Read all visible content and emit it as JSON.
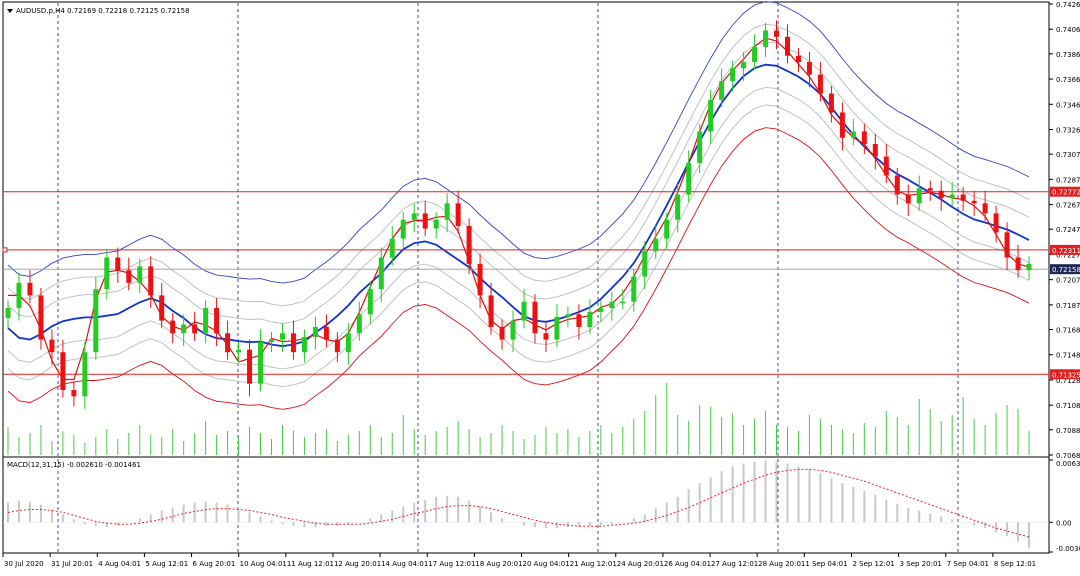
{
  "header": {
    "symbol_line": "AUDUSD.p,H4  0.72169 0.72218 0.72125 0.72158",
    "macd_line": "MACD(12,31,15) -0.002610 -0.001461"
  },
  "colors": {
    "bull": "#22cc22",
    "bear": "#ee1111",
    "grid_v": "#1a1aa0",
    "ma_main": "#1133cc",
    "ma_upper": "#3344cc",
    "envelope_gray": "#bbbbbb",
    "ma_red": "#dd1111",
    "hline": "#e02020",
    "volume": "#44cc44",
    "macd_hist": "#c8c8c8",
    "macd_signal": "#ee2222"
  },
  "price_axis": {
    "ticks": [
      "0.74260",
      "0.74060",
      "0.73865",
      "0.73665",
      "0.73465",
      "0.73265",
      "0.73070",
      "0.72870",
      "0.72670",
      "0.72475",
      "0.72275",
      "0.72075",
      "0.71875",
      "0.71680",
      "0.71480",
      "0.71280",
      "0.71080",
      "0.70885",
      "0.70685"
    ],
    "tags": [
      {
        "label": "0.72772",
        "value": 0.72772,
        "style": "red"
      },
      {
        "label": "0.72311",
        "value": 0.72311,
        "style": "red"
      },
      {
        "label": "0.72158",
        "value": 0.72158,
        "style": "dark"
      },
      {
        "label": "0.71325",
        "value": 0.71325,
        "style": "red"
      }
    ]
  },
  "macd_axis": {
    "ticks": [
      "0.006359",
      "0.00",
      "-0.003036"
    ]
  },
  "time_axis": {
    "labels": [
      "30 Jul 2020",
      "31 Jul 20:01",
      "4 Aug 04:01",
      "5 Aug 12:01",
      "6 Aug 20:01",
      "10 Aug 04:01",
      "11 Aug 12:01",
      "12 Aug 20:01",
      "14 Aug 04:01",
      "17 Aug 12:01",
      "18 Aug 20:01",
      "20 Aug 04:01",
      "21 Aug 12:01",
      "24 Aug 20:01",
      "26 Aug 04:01",
      "27 Aug 12:01",
      "28 Aug 20:01",
      "1 Sep 04:01",
      "2 Sep 12:01",
      "3 Sep 20:01",
      "7 Sep 04:01",
      "8 Sep 12:01"
    ]
  },
  "chart_data": {
    "type": "candlestick",
    "symbol": "AUDUSD.p",
    "timeframe": "H4",
    "ylim": [
      0.70685,
      0.7426
    ],
    "hlines": [
      0.72772,
      0.72311,
      0.71325
    ],
    "last_price": 0.72158,
    "close_path": [
      0.7185,
      0.7205,
      0.7195,
      0.716,
      0.715,
      0.712,
      0.7115,
      0.715,
      0.72,
      0.7225,
      0.7215,
      0.7205,
      0.7218,
      0.7195,
      0.7175,
      0.7165,
      0.7172,
      0.7165,
      0.7185,
      0.7165,
      0.715,
      0.7152,
      0.7125,
      0.7158,
      0.716,
      0.7165,
      0.715,
      0.7162,
      0.717,
      0.716,
      0.715,
      0.7165,
      0.718,
      0.72,
      0.7225,
      0.724,
      0.7255,
      0.726,
      0.7248,
      0.7255,
      0.7268,
      0.725,
      0.722,
      0.7195,
      0.717,
      0.716,
      0.7175,
      0.719,
      0.7165,
      0.716,
      0.7178,
      0.718,
      0.717,
      0.7182,
      0.7185,
      0.719,
      0.719,
      0.721,
      0.723,
      0.724,
      0.7255,
      0.7275,
      0.73,
      0.7325,
      0.735,
      0.7365,
      0.7375,
      0.738,
      0.7392,
      0.7405,
      0.74,
      0.7385,
      0.738,
      0.737,
      0.7355,
      0.734,
      0.732,
      0.7325,
      0.7315,
      0.7305,
      0.729,
      0.7275,
      0.7268,
      0.728,
      0.7278,
      0.7272,
      0.7275,
      0.727,
      0.7268,
      0.726,
      0.7245,
      0.7225,
      0.7215,
      0.722
    ],
    "volume_path": [
      28,
      18,
      22,
      30,
      14,
      24,
      20,
      12,
      18,
      26,
      16,
      22,
      30,
      20,
      18,
      26,
      14,
      22,
      34,
      20,
      24,
      18,
      28,
      22,
      16,
      30,
      24,
      18,
      22,
      26,
      14,
      20,
      24,
      30,
      18,
      22,
      40,
      26,
      20,
      24,
      28,
      34,
      26,
      18,
      22,
      30,
      24,
      16,
      20,
      28,
      22,
      26,
      18,
      24,
      30,
      22,
      28,
      36,
      44,
      60,
      72,
      40,
      34,
      50,
      48,
      38,
      42,
      30,
      36,
      44,
      30,
      28,
      24,
      40,
      36,
      30,
      26,
      22,
      32,
      28,
      44,
      38,
      30,
      56,
      46,
      34,
      40,
      58,
      36,
      30,
      42,
      50,
      46,
      24
    ],
    "macd_hist": [
      0.002,
      0.0022,
      0.0021,
      0.0018,
      0.0013,
      0.0008,
      0.0003,
      -0.0002,
      -0.0004,
      -0.0005,
      -0.0003,
      0.0,
      0.0004,
      0.0008,
      0.0012,
      0.0015,
      0.0018,
      0.002,
      0.0021,
      0.002,
      0.0018,
      0.0014,
      0.001,
      0.0006,
      0.0002,
      -0.0002,
      -0.0004,
      -0.0005,
      -0.0005,
      -0.0004,
      -0.0004,
      -0.0002,
      0.0,
      0.0004,
      0.0008,
      0.0012,
      0.0016,
      0.002,
      0.0023,
      0.0026,
      0.0027,
      0.0026,
      0.0022,
      0.0016,
      0.001,
      0.0004,
      0.0,
      -0.0003,
      -0.0005,
      -0.0006,
      -0.0006,
      -0.0005,
      -0.0005,
      -0.0004,
      -0.0003,
      -0.0002,
      0.0,
      0.0004,
      0.0008,
      0.0014,
      0.002,
      0.0026,
      0.0034,
      0.004,
      0.0046,
      0.0052,
      0.0057,
      0.006,
      0.0062,
      0.0063,
      0.0062,
      0.006,
      0.0057,
      0.0054,
      0.005,
      0.0045,
      0.004,
      0.0036,
      0.0032,
      0.0028,
      0.0023,
      0.0019,
      0.0015,
      0.0012,
      0.0009,
      0.0006,
      0.0003,
      0.0,
      -0.0003,
      -0.0006,
      -0.001,
      -0.0014,
      -0.002,
      -0.0026
    ],
    "macd_signal": [
      0.001,
      0.0012,
      0.0013,
      0.0013,
      0.0012,
      0.001,
      0.0007,
      0.0004,
      0.0001,
      -0.0001,
      -0.0002,
      -0.0002,
      -0.0001,
      0.0001,
      0.0003,
      0.0006,
      0.0009,
      0.0011,
      0.0013,
      0.0014,
      0.0014,
      0.0013,
      0.0012,
      0.001,
      0.0008,
      0.0005,
      0.0003,
      0.0001,
      -0.0001,
      -0.0002,
      -0.0002,
      -0.0002,
      -0.0002,
      -0.0001,
      0.0001,
      0.0003,
      0.0006,
      0.0009,
      0.0011,
      0.0014,
      0.0016,
      0.0017,
      0.0017,
      0.0016,
      0.0014,
      0.0011,
      0.0008,
      0.0005,
      0.0002,
      0.0,
      -0.0002,
      -0.0003,
      -0.0004,
      -0.0004,
      -0.0004,
      -0.0003,
      -0.0002,
      -0.0001,
      0.0001,
      0.0004,
      0.0007,
      0.0011,
      0.0015,
      0.002,
      0.0025,
      0.003,
      0.0035,
      0.004,
      0.0044,
      0.0048,
      0.0051,
      0.0053,
      0.0054,
      0.0054,
      0.0053,
      0.0051,
      0.0048,
      0.0045,
      0.0042,
      0.0038,
      0.0034,
      0.003,
      0.0026,
      0.0022,
      0.0018,
      0.0014,
      0.001,
      0.0006,
      0.0002,
      -0.0002,
      -0.0006,
      -0.0009,
      -0.0012,
      -0.0015
    ]
  }
}
